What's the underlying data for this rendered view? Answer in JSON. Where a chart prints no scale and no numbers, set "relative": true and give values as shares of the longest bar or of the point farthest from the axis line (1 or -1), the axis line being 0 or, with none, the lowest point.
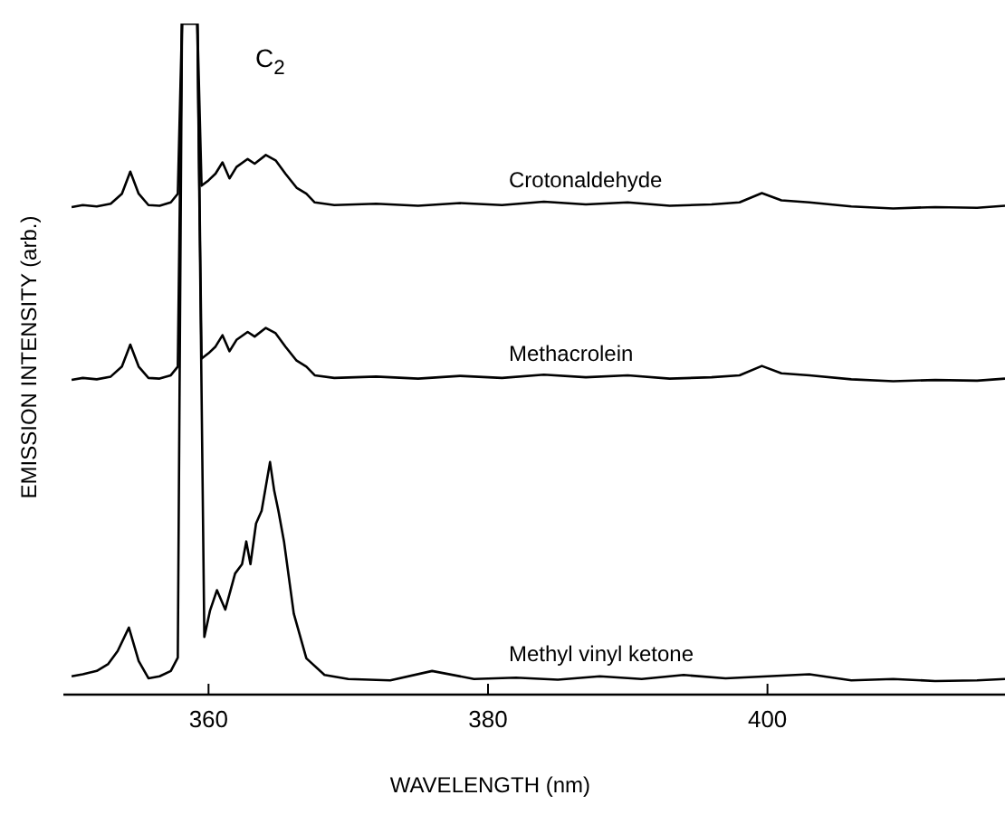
{
  "chart_data": {
    "type": "line",
    "relative": true,
    "xlabel": "WAVELENGTH (nm)",
    "ylabel": "EMISSION INTENSITY (arb.)",
    "xlim": [
      350,
      417
    ],
    "xticks": [
      360,
      380,
      400
    ],
    "grid": false,
    "marker": "none",
    "line_style": "solid",
    "annotations": [
      "C$_{2}$"
    ],
    "series": [
      {
        "name": "Crotonaldehyde",
        "color": "#000000",
        "x": [
          350.2,
          351,
          352,
          353,
          353.8,
          354.4,
          355,
          355.7,
          356.5,
          357.3,
          357.8,
          358.1,
          359.2,
          359.5,
          360,
          360.5,
          361,
          361.5,
          362,
          362.8,
          363.3,
          364.1,
          364.8,
          365.5,
          366.3,
          367,
          367.6,
          369,
          372,
          375,
          378,
          381,
          384,
          387,
          390,
          393,
          396,
          398,
          399.6,
          401,
          403,
          406,
          409,
          412,
          415,
          417
        ],
        "values": [
          0.725,
          0.728,
          0.726,
          0.73,
          0.745,
          0.778,
          0.745,
          0.728,
          0.727,
          0.732,
          0.745,
          1,
          1,
          0.757,
          0.765,
          0.775,
          0.792,
          0.768,
          0.785,
          0.797,
          0.79,
          0.803,
          0.795,
          0.775,
          0.754,
          0.745,
          0.732,
          0.728,
          0.73,
          0.727,
          0.731,
          0.728,
          0.733,
          0.729,
          0.732,
          0.727,
          0.729,
          0.732,
          0.746,
          0.735,
          0.732,
          0.726,
          0.723,
          0.725,
          0.724,
          0.727
        ]
      },
      {
        "name": "Methacrolein",
        "color": "#000000",
        "x": [
          350.2,
          351,
          352,
          353,
          353.8,
          354.4,
          355,
          355.7,
          356.5,
          357.3,
          357.8,
          358.1,
          359.2,
          359.5,
          360,
          360.5,
          361,
          361.5,
          362,
          362.8,
          363.3,
          364.1,
          364.8,
          365.5,
          366.3,
          367,
          367.6,
          369,
          372,
          375,
          378,
          381,
          384,
          387,
          390,
          393,
          396,
          398,
          399.6,
          401,
          403,
          406,
          409,
          412,
          415,
          417
        ],
        "values": [
          0.466,
          0.469,
          0.467,
          0.471,
          0.486,
          0.519,
          0.486,
          0.469,
          0.468,
          0.473,
          0.486,
          1,
          1,
          0.498,
          0.506,
          0.516,
          0.533,
          0.509,
          0.526,
          0.538,
          0.531,
          0.544,
          0.536,
          0.516,
          0.495,
          0.486,
          0.473,
          0.469,
          0.471,
          0.468,
          0.472,
          0.469,
          0.474,
          0.47,
          0.473,
          0.468,
          0.47,
          0.473,
          0.487,
          0.476,
          0.473,
          0.467,
          0.464,
          0.466,
          0.465,
          0.468
        ]
      },
      {
        "name": "Methyl vinyl ketone",
        "color": "#000000",
        "x": [
          350.2,
          351,
          352,
          352.8,
          353.5,
          354.3,
          355,
          355.7,
          356.5,
          357.3,
          357.8,
          358.1,
          359.2,
          359.7,
          360.1,
          360.6,
          361.2,
          361.9,
          362.4,
          362.7,
          363,
          363.4,
          363.8,
          364.4,
          364.7,
          365,
          365.4,
          366.1,
          367,
          368.3,
          370,
          373,
          376,
          379,
          382,
          385,
          388,
          391,
          394,
          397,
          400,
          403,
          406,
          409,
          412,
          415,
          417
        ],
        "values": [
          0.022,
          0.025,
          0.03,
          0.04,
          0.06,
          0.095,
          0.045,
          0.019,
          0.022,
          0.03,
          0.05,
          1,
          1,
          0.081,
          0.12,
          0.151,
          0.122,
          0.176,
          0.19,
          0.224,
          0.19,
          0.251,
          0.27,
          0.343,
          0.3,
          0.27,
          0.224,
          0.116,
          0.049,
          0.024,
          0.018,
          0.016,
          0.03,
          0.018,
          0.02,
          0.017,
          0.022,
          0.018,
          0.024,
          0.019,
          0.022,
          0.025,
          0.016,
          0.018,
          0.015,
          0.016,
          0.018
        ]
      }
    ]
  }
}
